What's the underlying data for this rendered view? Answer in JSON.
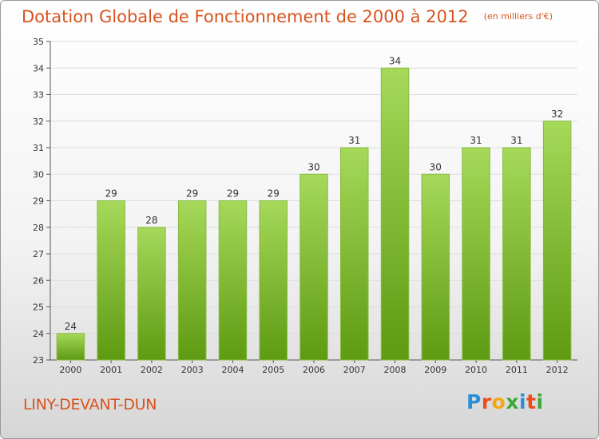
{
  "header": {
    "title": "Dotation Globale de Fonctionnement de 2000 à 2012",
    "unit": "(en milliers d'€)"
  },
  "footer": {
    "commune": "LINY-DEVANT-DUN",
    "logo_letters": [
      "P",
      "r",
      "o",
      "x",
      "i",
      "t",
      "i"
    ],
    "logo_colors": [
      "#2a8fd4",
      "#e94e1b",
      "#f3a712",
      "#3aa935",
      "#2a8fd4",
      "#e94e1b",
      "#3aa935"
    ]
  },
  "colors": {
    "bar_light": "#a6d95a",
    "bar_dark": "#5e9a12",
    "gridline": "#dddddd",
    "title": "#d9531e"
  },
  "chart_data": {
    "type": "bar",
    "categories": [
      "2000",
      "2001",
      "2002",
      "2003",
      "2004",
      "2005",
      "2006",
      "2007",
      "2008",
      "2009",
      "2010",
      "2011",
      "2012"
    ],
    "values": [
      24,
      29,
      28,
      29,
      29,
      29,
      30,
      31,
      34,
      30,
      31,
      31,
      32
    ],
    "yticks": [
      23,
      24,
      25,
      26,
      27,
      28,
      29,
      30,
      31,
      32,
      33,
      34,
      35
    ],
    "ylim": [
      23,
      35
    ],
    "grid": true
  }
}
